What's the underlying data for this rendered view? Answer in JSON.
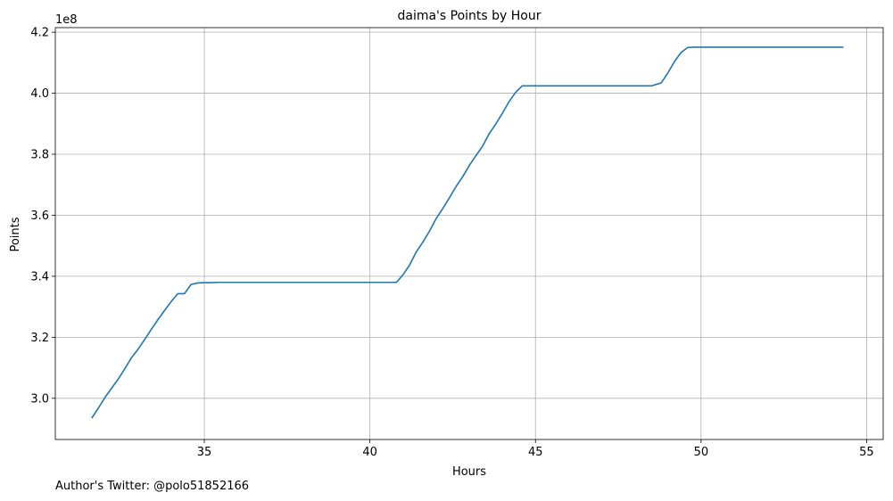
{
  "chart_data": {
    "type": "line",
    "title": "daima's Points by Hour",
    "xlabel": "Hours",
    "ylabel": "Points",
    "y_offset_label": "1e8",
    "xlim": [
      30.5,
      55.5
    ],
    "ylim": [
      2.865,
      4.215
    ],
    "x_ticks": [
      35,
      40,
      45,
      50,
      55
    ],
    "x_tick_labels": [
      "35",
      "40",
      "45",
      "50",
      "55"
    ],
    "y_ticks": [
      3.0,
      3.2,
      3.4,
      3.6,
      3.8,
      4.0,
      4.2
    ],
    "y_tick_labels": [
      "3.0",
      "3.2",
      "3.4",
      "3.6",
      "3.8",
      "4.0",
      "4.2"
    ],
    "grid": true,
    "line_color": "#1f77b4",
    "series": [
      {
        "x": [
          31.6,
          31.8,
          32.0,
          32.2,
          32.4,
          32.6,
          32.8,
          33.0,
          33.2,
          33.4,
          33.6,
          33.8,
          34.0,
          34.2,
          34.4,
          34.6,
          34.8,
          35.0,
          35.2,
          35.4,
          35.6,
          35.8,
          36.0,
          36.5,
          37.0,
          38.0,
          39.0,
          40.0,
          40.5,
          40.8,
          41.0,
          41.2,
          41.4,
          41.6,
          41.8,
          42.0,
          42.2,
          42.4,
          42.6,
          42.8,
          43.0,
          43.2,
          43.4,
          43.6,
          43.8,
          44.0,
          44.2,
          44.4,
          44.6,
          44.8,
          45.0,
          45.2,
          45.4,
          45.5,
          46.0,
          47.0,
          48.0,
          48.5,
          48.8,
          49.0,
          49.2,
          49.4,
          49.6,
          49.8,
          50.0,
          51.0,
          52.0,
          53.0,
          54.0,
          54.3
        ],
        "y": [
          2.935,
          2.968,
          3.003,
          3.033,
          3.063,
          3.097,
          3.133,
          3.161,
          3.193,
          3.226,
          3.258,
          3.288,
          3.317,
          3.343,
          3.343,
          3.373,
          3.378,
          3.379,
          3.379,
          3.38,
          3.38,
          3.38,
          3.38,
          3.38,
          3.38,
          3.38,
          3.38,
          3.38,
          3.38,
          3.38,
          3.405,
          3.437,
          3.48,
          3.512,
          3.548,
          3.589,
          3.622,
          3.657,
          3.694,
          3.726,
          3.763,
          3.795,
          3.826,
          3.867,
          3.899,
          3.934,
          3.972,
          4.003,
          4.024,
          4.024,
          4.024,
          4.024,
          4.024,
          4.024,
          4.024,
          4.024,
          4.024,
          4.024,
          4.034,
          4.067,
          4.104,
          4.134,
          4.15,
          4.151,
          4.151,
          4.151,
          4.151,
          4.151,
          4.151,
          4.151
        ]
      }
    ]
  },
  "footer": {
    "author_text": "Author's Twitter: @polo51852166"
  }
}
